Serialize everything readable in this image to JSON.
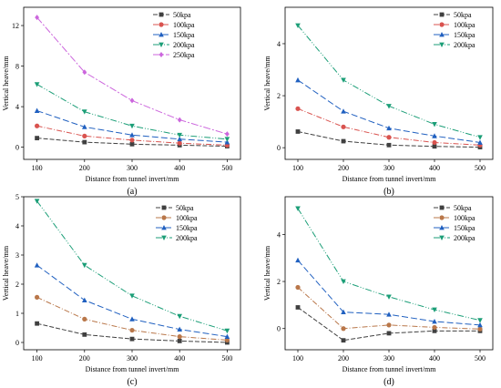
{
  "figure": {
    "xlabel": "Distance from tunnel invert/mm",
    "ylabel": "Vertical heave/mm"
  },
  "chart_data": [
    {
      "id": "a",
      "panel_label": "(a)",
      "type": "line",
      "x": [
        100,
        200,
        300,
        400,
        500
      ],
      "xticks": [
        100,
        200,
        300,
        400,
        500
      ],
      "yticks": [
        0,
        4,
        8,
        12
      ],
      "xlim": [
        72,
        528
      ],
      "ylim": [
        -1.2,
        13.8
      ],
      "legend_position": "top-right",
      "series": [
        {
          "name": "50kpa",
          "color": "#404040",
          "marker": "square",
          "values": [
            0.9,
            0.5,
            0.3,
            0.2,
            0.1
          ]
        },
        {
          "name": "100kpa",
          "color": "#d9534f",
          "marker": "circle",
          "values": [
            2.1,
            1.1,
            0.7,
            0.4,
            0.2
          ]
        },
        {
          "name": "150kpa",
          "color": "#2060c0",
          "marker": "triangle",
          "values": [
            3.6,
            2.0,
            1.2,
            0.8,
            0.5
          ]
        },
        {
          "name": "200kpa",
          "color": "#1b9e77",
          "marker": "tridown",
          "values": [
            6.2,
            3.5,
            2.1,
            1.2,
            0.8
          ]
        },
        {
          "name": "250kpa",
          "color": "#cc66dd",
          "marker": "diamond",
          "values": [
            12.8,
            7.4,
            4.6,
            2.7,
            1.3
          ]
        }
      ]
    },
    {
      "id": "b",
      "panel_label": "(b)",
      "type": "line",
      "x": [
        100,
        200,
        300,
        400,
        500
      ],
      "xticks": [
        100,
        200,
        300,
        400,
        500
      ],
      "yticks": [
        0,
        2,
        4
      ],
      "xlim": [
        72,
        528
      ],
      "ylim": [
        -0.45,
        5.4
      ],
      "legend_position": "top-right",
      "series": [
        {
          "name": "50kpa",
          "color": "#404040",
          "marker": "square",
          "values": [
            0.62,
            0.25,
            0.1,
            0.05,
            0.02
          ]
        },
        {
          "name": "100kpa",
          "color": "#d9534f",
          "marker": "circle",
          "values": [
            1.5,
            0.8,
            0.4,
            0.2,
            0.1
          ]
        },
        {
          "name": "150kpa",
          "color": "#2060c0",
          "marker": "triangle",
          "values": [
            2.6,
            1.4,
            0.75,
            0.45,
            0.2
          ]
        },
        {
          "name": "200kpa",
          "color": "#1b9e77",
          "marker": "tridown",
          "values": [
            4.7,
            2.6,
            1.6,
            0.9,
            0.4
          ]
        }
      ]
    },
    {
      "id": "c",
      "panel_label": "(c)",
      "type": "line",
      "x": [
        100,
        200,
        300,
        400,
        500
      ],
      "xticks": [
        100,
        200,
        300,
        400,
        500
      ],
      "yticks": [
        0,
        1,
        2,
        3,
        4,
        5
      ],
      "xlim": [
        72,
        528
      ],
      "ylim": [
        -0.25,
        5.0
      ],
      "legend_position": "top-right",
      "series": [
        {
          "name": "50kpa",
          "color": "#404040",
          "marker": "square",
          "values": [
            0.65,
            0.27,
            0.12,
            0.05,
            0.0
          ]
        },
        {
          "name": "100kpa",
          "color": "#b9774a",
          "marker": "circle",
          "values": [
            1.55,
            0.8,
            0.42,
            0.2,
            0.08
          ]
        },
        {
          "name": "150kpa",
          "color": "#2060c0",
          "marker": "triangle",
          "values": [
            2.65,
            1.45,
            0.8,
            0.45,
            0.2
          ]
        },
        {
          "name": "200kpa",
          "color": "#1b9e77",
          "marker": "tridown",
          "values": [
            4.85,
            2.65,
            1.6,
            0.9,
            0.4
          ]
        }
      ]
    },
    {
      "id": "d",
      "panel_label": "(d)",
      "type": "line",
      "x": [
        100,
        200,
        300,
        400,
        500
      ],
      "xticks": [
        100,
        200,
        300,
        400,
        500
      ],
      "yticks": [
        0,
        2,
        4
      ],
      "xlim": [
        72,
        528
      ],
      "ylim": [
        -0.9,
        5.6
      ],
      "legend_position": "top-right",
      "series": [
        {
          "name": "50kpa",
          "color": "#404040",
          "marker": "square",
          "values": [
            0.9,
            -0.5,
            -0.2,
            -0.1,
            -0.1
          ]
        },
        {
          "name": "100kpa",
          "color": "#b9774a",
          "marker": "circle",
          "values": [
            1.75,
            0.0,
            0.15,
            0.05,
            -0.02
          ]
        },
        {
          "name": "150kpa",
          "color": "#2060c0",
          "marker": "triangle",
          "values": [
            2.9,
            0.7,
            0.6,
            0.3,
            0.15
          ]
        },
        {
          "name": "200kpa",
          "color": "#1b9e77",
          "marker": "tridown",
          "values": [
            5.1,
            2.0,
            1.35,
            0.8,
            0.35
          ]
        }
      ]
    }
  ]
}
